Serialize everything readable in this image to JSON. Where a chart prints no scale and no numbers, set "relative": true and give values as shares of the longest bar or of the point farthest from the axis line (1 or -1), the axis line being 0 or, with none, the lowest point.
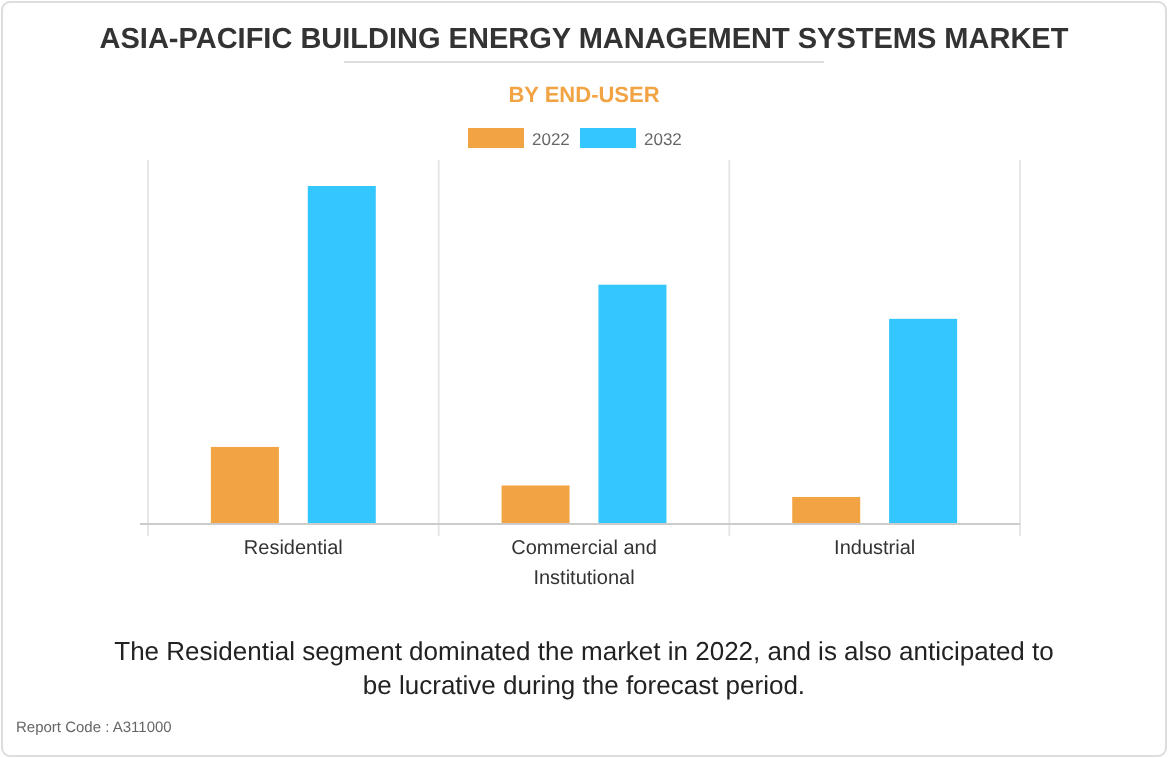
{
  "chart_data": {
    "type": "bar",
    "title": "ASIA-PACIFIC BUILDING ENERGY MANAGEMENT SYSTEMS MARKET",
    "subtitle": "BY END-USER",
    "categories": [
      "Residential",
      "Commercial and Institutional",
      "Industrial"
    ],
    "series": [
      {
        "name": "2022",
        "color": "#f2a444",
        "values": [
          0.228,
          0.114,
          0.08
        ]
      },
      {
        "name": "2032",
        "color": "#33c6ff",
        "values": [
          1,
          0.708,
          0.607
        ]
      }
    ],
    "relative": true,
    "legend": "top",
    "annotations": [
      "The Residential segment dominated the market in 2022, and is also anticipated to be lucrative during the forecast period.",
      "Report Code : A311000"
    ]
  }
}
